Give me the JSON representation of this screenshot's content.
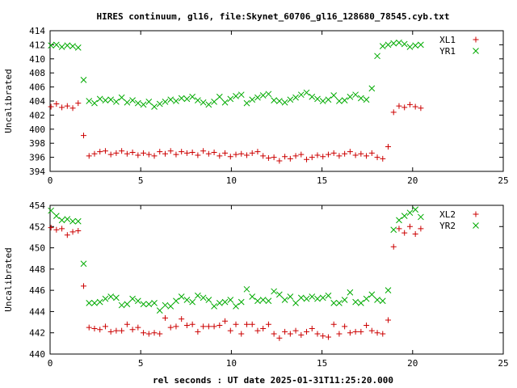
{
  "title": "HIRES continuum, gl16, file:Skynet_60706_gl16_128680_78545.cyb.txt",
  "xlabel": "rel seconds : UT date 2025-01-31T11:25:20.000",
  "chart_data": [
    {
      "type": "scatter",
      "ylabel": "Uncalibrated",
      "xlim": [
        0,
        25
      ],
      "ylim": [
        394,
        414
      ],
      "xticks": [
        0,
        5,
        10,
        15,
        20,
        25
      ],
      "yticks": [
        394,
        396,
        398,
        400,
        402,
        404,
        406,
        408,
        410,
        412,
        414
      ],
      "legend_position": "top-right",
      "series": [
        {
          "name": "XL1",
          "marker": "plus",
          "color": "#cc0000",
          "x": [
            0.05,
            0.35,
            0.65,
            0.95,
            1.25,
            1.55,
            1.85,
            2.15,
            2.45,
            2.75,
            3.05,
            3.35,
            3.65,
            3.95,
            4.25,
            4.55,
            4.85,
            5.15,
            5.45,
            5.75,
            6.05,
            6.35,
            6.65,
            6.95,
            7.25,
            7.55,
            7.85,
            8.15,
            8.45,
            8.75,
            9.05,
            9.35,
            9.65,
            9.95,
            10.25,
            10.55,
            10.85,
            11.15,
            11.45,
            11.75,
            12.05,
            12.35,
            12.65,
            12.95,
            13.25,
            13.55,
            13.85,
            14.15,
            14.45,
            14.75,
            15.05,
            15.35,
            15.65,
            15.95,
            16.25,
            16.55,
            16.85,
            17.15,
            17.45,
            17.75,
            18.05,
            18.35,
            18.65,
            18.95,
            19.25,
            19.55,
            19.85,
            20.15,
            20.45
          ],
          "y": [
            403.2,
            403.6,
            403.1,
            403.3,
            403.0,
            403.7,
            399.1,
            396.2,
            396.5,
            396.8,
            396.9,
            396.4,
            396.6,
            396.9,
            396.5,
            396.7,
            396.3,
            396.6,
            396.4,
            396.2,
            396.8,
            396.5,
            396.9,
            396.4,
            396.8,
            396.6,
            396.7,
            396.3,
            396.9,
            396.5,
            396.7,
            396.2,
            396.6,
            396.1,
            396.4,
            396.5,
            396.3,
            396.6,
            396.8,
            396.2,
            395.9,
            396.0,
            395.5,
            396.1,
            395.8,
            396.2,
            396.4,
            395.7,
            396.0,
            396.3,
            396.1,
            396.4,
            396.6,
            396.2,
            396.5,
            396.8,
            396.3,
            396.5,
            396.2,
            396.6,
            396.0,
            395.8,
            397.5,
            402.4,
            403.3,
            403.1,
            403.5,
            403.2,
            403.0
          ]
        },
        {
          "name": "YR1",
          "marker": "cross",
          "color": "#00aa00",
          "x": [
            0.05,
            0.35,
            0.65,
            0.95,
            1.25,
            1.55,
            1.85,
            2.15,
            2.45,
            2.75,
            3.05,
            3.35,
            3.65,
            3.95,
            4.25,
            4.55,
            4.85,
            5.15,
            5.45,
            5.75,
            6.05,
            6.35,
            6.65,
            6.95,
            7.25,
            7.55,
            7.85,
            8.15,
            8.45,
            8.75,
            9.05,
            9.35,
            9.65,
            9.95,
            10.25,
            10.55,
            10.85,
            11.15,
            11.45,
            11.75,
            12.05,
            12.35,
            12.65,
            12.95,
            13.25,
            13.55,
            13.85,
            14.15,
            14.45,
            14.75,
            15.05,
            15.35,
            15.65,
            15.95,
            16.25,
            16.55,
            16.85,
            17.15,
            17.45,
            17.75,
            18.05,
            18.35,
            18.65,
            18.95,
            19.25,
            19.55,
            19.85,
            20.15,
            20.45
          ],
          "y": [
            411.9,
            412.0,
            411.7,
            411.9,
            411.8,
            411.6,
            407.0,
            404.0,
            403.7,
            404.3,
            404.1,
            404.2,
            403.9,
            404.5,
            403.8,
            404.1,
            403.7,
            403.5,
            403.9,
            403.2,
            403.6,
            403.9,
            404.2,
            404.0,
            404.4,
            404.3,
            404.6,
            404.1,
            403.8,
            403.5,
            403.9,
            404.6,
            403.8,
            404.3,
            404.7,
            404.9,
            403.7,
            404.2,
            404.5,
            404.8,
            405.0,
            404.1,
            404.0,
            403.8,
            404.2,
            404.5,
            404.9,
            405.2,
            404.6,
            404.3,
            404.0,
            404.2,
            404.8,
            404.0,
            404.1,
            404.6,
            404.9,
            404.4,
            404.2,
            405.8,
            410.4,
            411.8,
            412.0,
            412.2,
            412.3,
            412.1,
            411.7,
            411.9,
            412.0
          ]
        }
      ]
    },
    {
      "type": "scatter",
      "ylabel": "Uncalibrated",
      "xlim": [
        0,
        25
      ],
      "ylim": [
        440,
        454
      ],
      "xticks": [
        0,
        5,
        10,
        15,
        20,
        25
      ],
      "yticks": [
        440,
        442,
        444,
        446,
        448,
        450,
        452,
        454
      ],
      "legend_position": "top-right",
      "series": [
        {
          "name": "XL2",
          "marker": "plus",
          "color": "#cc0000",
          "x": [
            0.05,
            0.35,
            0.65,
            0.95,
            1.25,
            1.55,
            1.85,
            2.15,
            2.45,
            2.75,
            3.05,
            3.35,
            3.65,
            3.95,
            4.25,
            4.55,
            4.85,
            5.15,
            5.45,
            5.75,
            6.05,
            6.35,
            6.65,
            6.95,
            7.25,
            7.55,
            7.85,
            8.15,
            8.45,
            8.75,
            9.05,
            9.35,
            9.65,
            9.95,
            10.25,
            10.55,
            10.85,
            11.15,
            11.45,
            11.75,
            12.05,
            12.35,
            12.65,
            12.95,
            13.25,
            13.55,
            13.85,
            14.15,
            14.45,
            14.75,
            15.05,
            15.35,
            15.65,
            15.95,
            16.25,
            16.55,
            16.85,
            17.15,
            17.45,
            17.75,
            18.05,
            18.35,
            18.65,
            18.95,
            19.25,
            19.55,
            19.85,
            20.15,
            20.45
          ],
          "y": [
            451.9,
            451.7,
            451.8,
            451.2,
            451.5,
            451.6,
            446.4,
            442.5,
            442.4,
            442.3,
            442.6,
            442.1,
            442.2,
            442.2,
            442.8,
            442.3,
            442.5,
            442.0,
            441.9,
            442.0,
            441.9,
            443.4,
            442.5,
            442.6,
            443.3,
            442.7,
            442.8,
            442.1,
            442.6,
            442.6,
            442.6,
            442.7,
            443.1,
            442.2,
            442.8,
            441.9,
            442.8,
            442.8,
            442.2,
            442.4,
            442.8,
            441.9,
            441.5,
            442.1,
            441.9,
            442.2,
            441.8,
            442.1,
            442.4,
            441.9,
            441.7,
            441.6,
            442.8,
            441.9,
            442.6,
            442.0,
            442.1,
            442.1,
            442.7,
            442.2,
            442.0,
            441.9,
            443.2,
            450.1,
            451.8,
            451.4,
            452.0,
            451.3,
            451.8
          ]
        },
        {
          "name": "YR2",
          "marker": "cross",
          "color": "#00aa00",
          "x": [
            0.05,
            0.35,
            0.65,
            0.95,
            1.25,
            1.55,
            1.85,
            2.15,
            2.45,
            2.75,
            3.05,
            3.35,
            3.65,
            3.95,
            4.25,
            4.55,
            4.85,
            5.15,
            5.45,
            5.75,
            6.05,
            6.35,
            6.65,
            6.95,
            7.25,
            7.55,
            7.85,
            8.15,
            8.45,
            8.75,
            9.05,
            9.35,
            9.65,
            9.95,
            10.25,
            10.55,
            10.85,
            11.15,
            11.45,
            11.75,
            12.05,
            12.35,
            12.65,
            12.95,
            13.25,
            13.55,
            13.85,
            14.15,
            14.45,
            14.75,
            15.05,
            15.35,
            15.65,
            15.95,
            16.25,
            16.55,
            16.85,
            17.15,
            17.45,
            17.75,
            18.05,
            18.35,
            18.65,
            18.95,
            19.25,
            19.55,
            19.85,
            20.15,
            20.45
          ],
          "y": [
            453.5,
            453.0,
            452.6,
            452.7,
            452.5,
            452.5,
            448.5,
            444.8,
            444.8,
            444.9,
            445.2,
            445.4,
            445.3,
            444.6,
            444.7,
            445.2,
            445.0,
            444.7,
            444.7,
            444.8,
            444.1,
            444.6,
            444.5,
            445.0,
            445.4,
            445.1,
            444.9,
            445.5,
            445.3,
            445.1,
            444.5,
            444.8,
            444.9,
            445.1,
            444.5,
            444.9,
            446.1,
            445.4,
            445.0,
            445.1,
            445.0,
            445.9,
            445.6,
            445.1,
            445.4,
            444.8,
            445.3,
            445.2,
            445.4,
            445.2,
            445.3,
            445.5,
            444.8,
            444.8,
            445.1,
            445.8,
            444.9,
            444.8,
            445.2,
            445.6,
            445.1,
            445.0,
            446.0,
            451.7,
            452.6,
            453.0,
            453.3,
            453.6,
            452.9
          ]
        }
      ]
    }
  ]
}
